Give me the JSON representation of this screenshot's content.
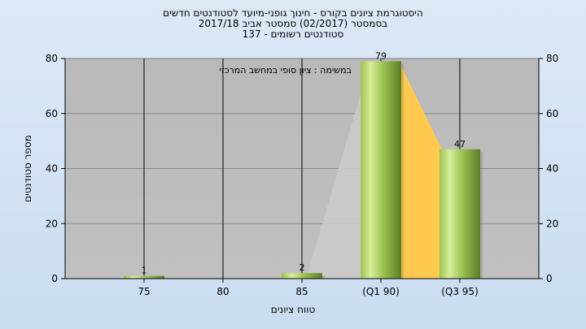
{
  "chart_data": {
    "type": "bar",
    "title_lines": [
      "היסטוגרמת ציונים בקורס - חינוך גופני-מיועד לסטודנטים חדשים",
      "בסמסטר  (02/2017)  סמסטר אביב 2017/18",
      "סטודנטים רשומים - 137"
    ],
    "categories": [
      "75",
      "80",
      "85",
      "(Q1 90)",
      "(Q3 95)"
    ],
    "values": [
      1,
      0,
      2,
      79,
      47
    ],
    "value_labels": [
      "1",
      "",
      "2",
      "79",
      "47"
    ],
    "ylabel": "מספר סטודנטים",
    "xlabel": "טווח ציונים",
    "ylim": [
      0,
      80
    ],
    "yticks": [
      0,
      20,
      40,
      60,
      80
    ],
    "annotation": "במשימה : ציון סופי במחשב המרכזי",
    "grid": true,
    "colors": {
      "plot_bg": "#c0c0c0",
      "bar_light": "#d8ee9a",
      "bar_mid": "#9cc453",
      "bar_dark": "#5a7d24",
      "quartile_fill": "#ffc94f",
      "triangle_fill": "#cacaca"
    }
  }
}
